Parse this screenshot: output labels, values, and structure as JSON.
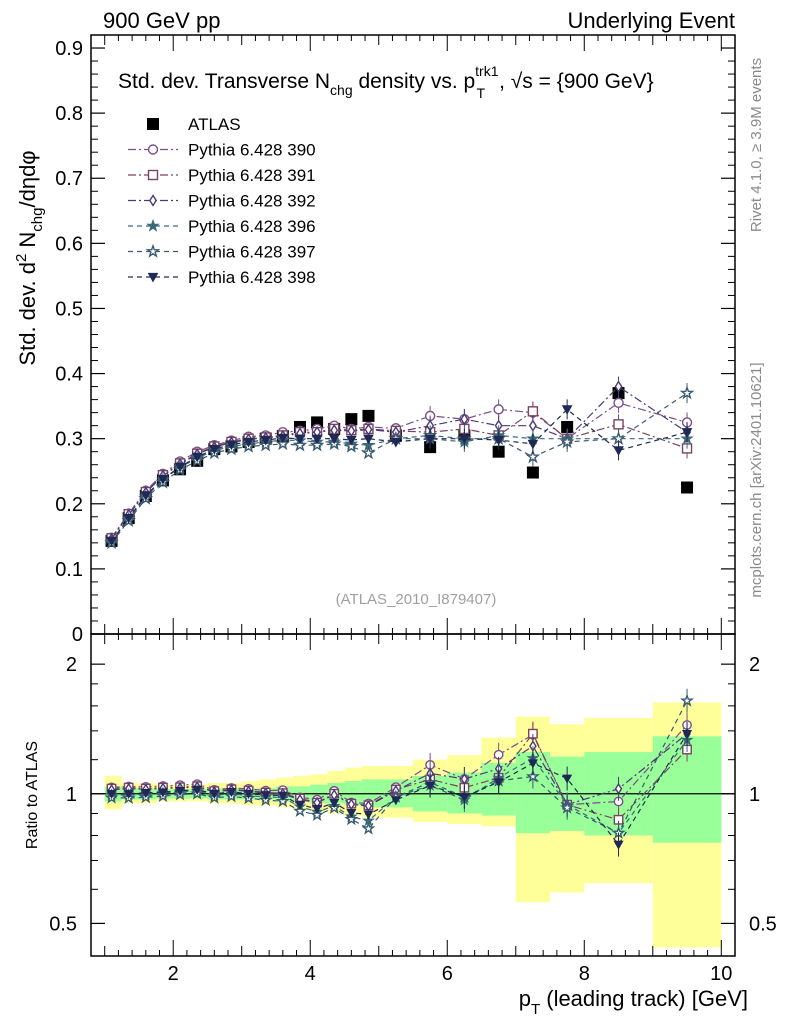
{
  "header": {
    "left": "900 GeV pp",
    "right": "Underlying Event"
  },
  "side": {
    "rivet": "Rivet 4.1.0, ≥ 3.9M events",
    "mcplots": "mcplots.cern.ch [arXiv:2401.10621]"
  },
  "analysis_tag": "(ATLAS_2010_I879407)",
  "title": {
    "part1": "Std. dev. Transverse N",
    "sub_chg": "chg",
    "part2": " density vs. p",
    "sup_trk1": "trk1",
    "sub_T": "T",
    "part3": ", √s = {900 GeV}"
  },
  "ylabel_main": {
    "prefix": "Std. dev. d",
    "sup2": "2",
    "mid": " N",
    "sub_chg": "chg",
    "suffix": "/dηdφ"
  },
  "ylabel_ratio": "Ratio to ATLAS",
  "xlabel": {
    "p": "p",
    "sub_T": "T",
    "rest": " (leading track) [GeV]"
  },
  "chart_data": [
    {
      "type": "scatter",
      "name": "main",
      "xlim": [
        0.8,
        10.2
      ],
      "ylim": [
        0,
        0.92
      ],
      "yticks": [
        0,
        0.1,
        0.2,
        0.3,
        0.4,
        0.5,
        0.6,
        0.7,
        0.8,
        0.9
      ],
      "ytick_labels": [
        "0",
        "0.1",
        "0.2",
        "0.3",
        "0.4",
        "0.5",
        "0.6",
        "0.7",
        "0.8",
        "0.9"
      ],
      "x": [
        1.1,
        1.35,
        1.6,
        1.85,
        2.1,
        2.35,
        2.6,
        2.85,
        3.1,
        3.35,
        3.6,
        3.85,
        4.1,
        4.35,
        4.6,
        4.85,
        5.25,
        5.75,
        6.25,
        6.75,
        7.25,
        7.75,
        8.5,
        9.5
      ],
      "series": [
        {
          "name": "ATLAS",
          "marker": "square-filled",
          "color": "#000000",
          "values": [
            0.143,
            0.178,
            0.212,
            0.236,
            0.253,
            0.266,
            0.284,
            0.288,
            0.295,
            0.3,
            0.304,
            0.318,
            0.325,
            0.315,
            0.33,
            0.335,
            0.305,
            0.287,
            0.305,
            0.28,
            0.248,
            0.318,
            0.37,
            0.225
          ]
        },
        {
          "name": "Pythia 6.428 390",
          "marker": "circle-open",
          "color": "#7a4f8a",
          "values": [
            0.148,
            0.185,
            0.22,
            0.246,
            0.265,
            0.28,
            0.29,
            0.297,
            0.303,
            0.305,
            0.31,
            0.312,
            0.315,
            0.32,
            0.315,
            0.318,
            0.316,
            0.335,
            0.33,
            0.345,
            0.34,
            0.3,
            0.355,
            0.325
          ]
        },
        {
          "name": "Pythia 6.428 391",
          "marker": "square-open",
          "color": "#7a4560",
          "values": [
            0.147,
            0.184,
            0.218,
            0.244,
            0.262,
            0.277,
            0.288,
            0.295,
            0.3,
            0.302,
            0.305,
            0.31,
            0.31,
            0.315,
            0.313,
            0.315,
            0.312,
            0.31,
            0.315,
            0.305,
            0.342,
            0.3,
            0.322,
            0.285
          ]
        },
        {
          "name": "Pythia 6.428 392",
          "marker": "diamond-open",
          "color": "#4a3a7a",
          "values": [
            0.146,
            0.183,
            0.217,
            0.243,
            0.261,
            0.276,
            0.287,
            0.294,
            0.299,
            0.301,
            0.304,
            0.308,
            0.31,
            0.313,
            0.312,
            0.314,
            0.31,
            0.32,
            0.33,
            0.32,
            0.32,
            0.3,
            0.38,
            0.31
          ]
        },
        {
          "name": "Pythia 6.428 396",
          "marker": "star-filled",
          "color": "#3a6a7a",
          "values": [
            0.142,
            0.177,
            0.211,
            0.237,
            0.256,
            0.27,
            0.282,
            0.288,
            0.292,
            0.295,
            0.298,
            0.297,
            0.295,
            0.295,
            0.292,
            0.29,
            0.3,
            0.3,
            0.295,
            0.305,
            0.3,
            0.3,
            0.3,
            0.3
          ]
        },
        {
          "name": "Pythia 6.428 397",
          "marker": "star-open",
          "color": "#3a5a70",
          "values": [
            0.14,
            0.174,
            0.208,
            0.233,
            0.252,
            0.266,
            0.278,
            0.284,
            0.288,
            0.29,
            0.292,
            0.29,
            0.29,
            0.292,
            0.288,
            0.278,
            0.3,
            0.305,
            0.3,
            0.3,
            0.272,
            0.295,
            0.3,
            0.37
          ]
        },
        {
          "name": "Pythia 6.428 398",
          "marker": "triangle-down-filled",
          "color": "#1e2a55",
          "values": [
            0.143,
            0.178,
            0.213,
            0.238,
            0.257,
            0.272,
            0.284,
            0.291,
            0.295,
            0.298,
            0.301,
            0.3,
            0.3,
            0.3,
            0.298,
            0.3,
            0.295,
            0.3,
            0.3,
            0.298,
            0.292,
            0.345,
            0.282,
            0.31
          ]
        }
      ]
    },
    {
      "type": "scatter",
      "name": "ratio",
      "xlim": [
        0.8,
        10.2
      ],
      "ylim": [
        0.42,
        2.35
      ],
      "yscale": "log",
      "yticks": [
        0.5,
        1,
        2
      ],
      "ytick_labels": [
        "0.5",
        "1",
        "2"
      ],
      "xticks": [
        2,
        4,
        6,
        8,
        10
      ],
      "xtick_labels": [
        "2",
        "4",
        "6",
        "8",
        "10"
      ],
      "bands": {
        "edges": [
          1.0,
          1.25,
          1.5,
          1.75,
          2.0,
          2.25,
          2.5,
          2.75,
          3.0,
          3.25,
          3.5,
          3.75,
          4.0,
          4.25,
          4.5,
          4.75,
          5.0,
          5.5,
          6.0,
          6.5,
          7.0,
          7.5,
          8.0,
          9.0,
          10.0
        ],
        "green_low": [
          0.96,
          0.97,
          0.97,
          0.975,
          0.975,
          0.975,
          0.97,
          0.97,
          0.97,
          0.97,
          0.96,
          0.96,
          0.95,
          0.95,
          0.94,
          0.93,
          0.93,
          0.91,
          0.9,
          0.89,
          0.81,
          0.82,
          0.8,
          0.77
        ],
        "green_high": [
          1.04,
          1.03,
          1.03,
          1.025,
          1.025,
          1.025,
          1.03,
          1.03,
          1.03,
          1.03,
          1.04,
          1.04,
          1.05,
          1.06,
          1.07,
          1.08,
          1.08,
          1.1,
          1.12,
          1.18,
          1.25,
          1.22,
          1.25,
          1.36
        ],
        "yellow_low": [
          0.92,
          0.95,
          0.95,
          0.96,
          0.96,
          0.96,
          0.95,
          0.95,
          0.94,
          0.94,
          0.93,
          0.92,
          0.91,
          0.9,
          0.89,
          0.88,
          0.88,
          0.86,
          0.85,
          0.84,
          0.56,
          0.59,
          0.62,
          0.44
        ],
        "yellow_high": [
          1.1,
          1.06,
          1.06,
          1.05,
          1.05,
          1.05,
          1.06,
          1.06,
          1.07,
          1.08,
          1.09,
          1.1,
          1.11,
          1.13,
          1.15,
          1.16,
          1.16,
          1.2,
          1.23,
          1.35,
          1.51,
          1.45,
          1.5,
          1.63
        ]
      }
    }
  ]
}
